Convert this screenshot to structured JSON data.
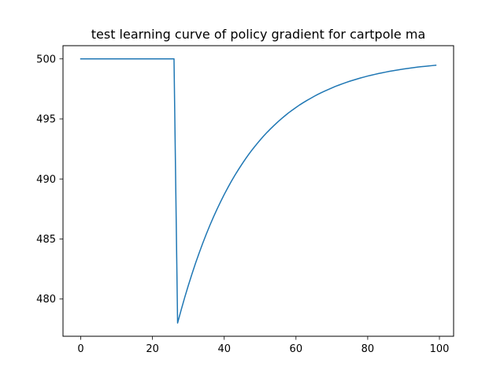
{
  "chart_data": {
    "type": "line",
    "title": "test learning curve of policy gradient for cartpole ma",
    "xlabel": "",
    "ylabel": "",
    "xlim": [
      -4.95,
      103.95
    ],
    "ylim": [
      476.9,
      501.1
    ],
    "xticks": [
      0,
      20,
      40,
      60,
      80,
      100
    ],
    "yticks": [
      480,
      485,
      490,
      495,
      500
    ],
    "grid": false,
    "series": [
      {
        "color": "#1f77b4",
        "x": [
          0,
          1,
          2,
          3,
          4,
          5,
          6,
          7,
          8,
          9,
          10,
          11,
          12,
          13,
          14,
          15,
          16,
          17,
          18,
          19,
          20,
          21,
          22,
          23,
          24,
          25,
          26,
          27,
          28,
          29,
          30,
          31,
          32,
          33,
          34,
          35,
          36,
          37,
          38,
          39,
          40,
          41,
          42,
          43,
          44,
          45,
          46,
          47,
          48,
          49,
          50,
          51,
          52,
          53,
          54,
          55,
          56,
          57,
          58,
          59,
          60,
          61,
          62,
          63,
          64,
          65,
          66,
          67,
          68,
          69,
          70,
          71,
          72,
          73,
          74,
          75,
          76,
          77,
          78,
          79,
          80,
          81,
          82,
          83,
          84,
          85,
          86,
          87,
          88,
          89,
          90,
          91,
          92,
          93,
          94,
          95,
          96,
          97,
          98,
          99
        ],
        "values": [
          500,
          500,
          500,
          500,
          500,
          500,
          500,
          500,
          500,
          500,
          500,
          500,
          500,
          500,
          500,
          500,
          500,
          500,
          500,
          500,
          500,
          500,
          500,
          500,
          500,
          500,
          500,
          478.0,
          479.1,
          480.15,
          481.14,
          482.08,
          482.98,
          483.83,
          484.64,
          485.41,
          486.14,
          486.83,
          487.49,
          488.11,
          488.71,
          489.27,
          489.81,
          490.32,
          490.8,
          491.26,
          491.7,
          492.12,
          492.51,
          492.88,
          493.24,
          493.58,
          493.9,
          494.2,
          494.49,
          494.77,
          495.03,
          495.28,
          495.52,
          495.74,
          495.95,
          496.16,
          496.35,
          496.53,
          496.7,
          496.87,
          497.03,
          497.18,
          497.32,
          497.45,
          497.58,
          497.71,
          497.82,
          497.93,
          498.04,
          498.14,
          498.23,
          498.32,
          498.41,
          498.49,
          498.57,
          498.64,
          498.71,
          498.78,
          498.84,
          498.9,
          498.96,
          499.01,
          499.06,
          499.11,
          499.16,
          499.2,
          499.24,
          499.28,
          499.32,
          499.35,
          499.38,
          499.41,
          499.44,
          499.47
        ]
      }
    ]
  }
}
